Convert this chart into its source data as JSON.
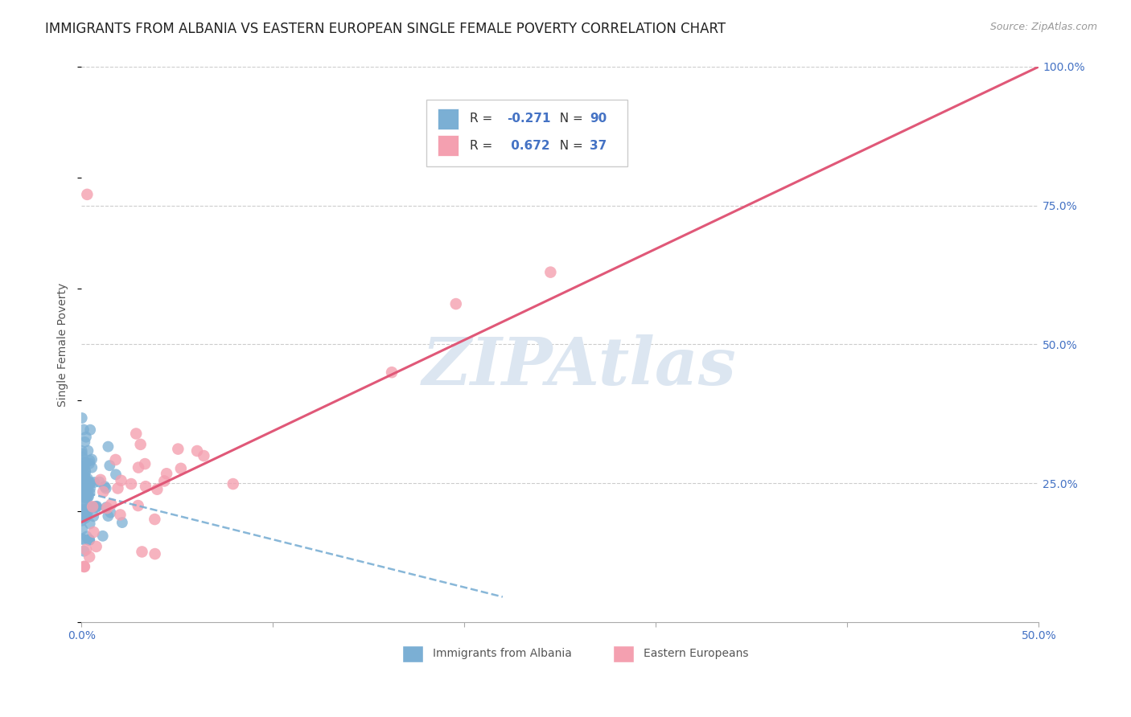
{
  "title": "IMMIGRANTS FROM ALBANIA VS EASTERN EUROPEAN SINGLE FEMALE POVERTY CORRELATION CHART",
  "source": "Source: ZipAtlas.com",
  "ylabel": "Single Female Poverty",
  "xlim": [
    0,
    0.5
  ],
  "ylim": [
    0,
    1.0
  ],
  "xtick_vals": [
    0.0,
    0.1,
    0.2,
    0.3,
    0.4,
    0.5
  ],
  "xtick_labels": [
    "0.0%",
    "",
    "",
    "",
    "",
    "50.0%"
  ],
  "ytick_vals": [
    0.0,
    0.25,
    0.5,
    0.75,
    1.0
  ],
  "ytick_labels_right": [
    "",
    "25.0%",
    "50.0%",
    "75.0%",
    "100.0%"
  ],
  "color_albania": "#7bafd4",
  "color_eastern": "#f4a0b0",
  "color_trend_eastern": "#e05878",
  "color_trend_albania": "#7bafd4",
  "color_axis": "#4472c4",
  "color_grid": "#cccccc",
  "color_watermark": "#dce6f1",
  "watermark_text": "ZIPAtlas",
  "background_color": "#ffffff",
  "legend_R1": "-0.271",
  "legend_N1": "90",
  "legend_R2": "0.672",
  "legend_N2": "37",
  "title_fontsize": 12,
  "tick_fontsize": 10,
  "ylabel_fontsize": 10
}
